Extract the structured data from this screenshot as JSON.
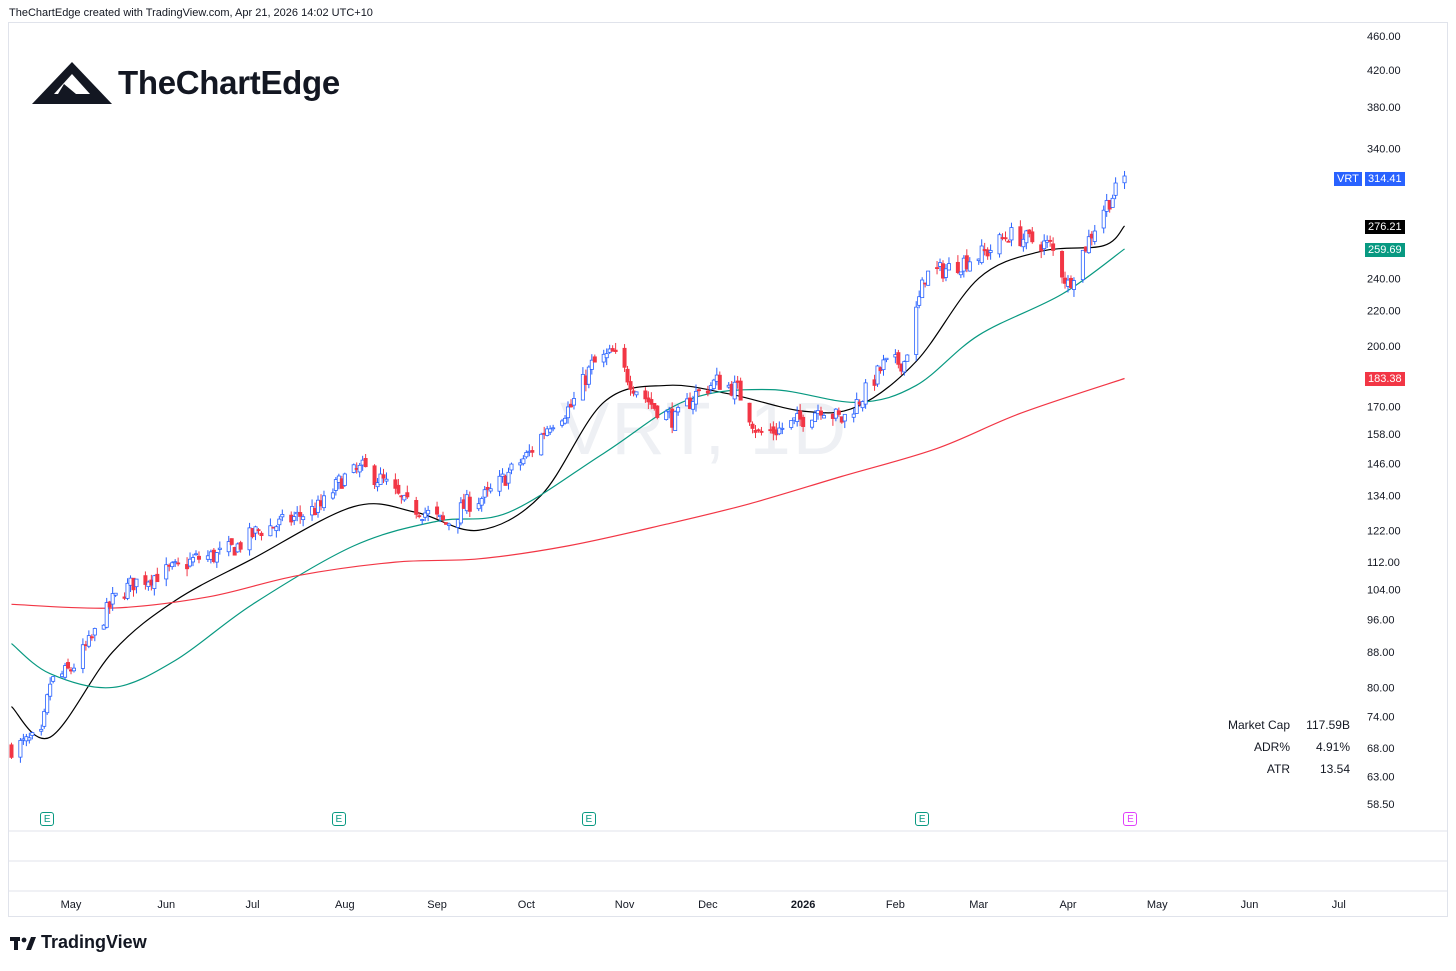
{
  "header": {
    "attribution": "TheChartEdge created with TradingView.com, Apr 21, 2026 14:02 UTC+10"
  },
  "logo": {
    "text": "TheChartEdge"
  },
  "watermark": {
    "text": "VRT, 1D"
  },
  "footer": {
    "brand": "TradingView"
  },
  "colors": {
    "up": "#2962ff",
    "down": "#f23645",
    "ma_fast": "#000000",
    "ma_mid": "#089981",
    "ma_slow": "#f23645",
    "grid": "#e0e3eb",
    "earnings": "#089981"
  },
  "price_labels": [
    {
      "id": "vrt",
      "ticker": "VRT",
      "value": "314.41",
      "color": "#2962ff"
    },
    {
      "id": "ma-fast",
      "value": "276.21",
      "color": "#000000"
    },
    {
      "id": "ma-mid",
      "value": "259.69",
      "color": "#089981"
    },
    {
      "id": "ma-slow",
      "value": "183.38",
      "color": "#f23645"
    }
  ],
  "stats": [
    {
      "label": "Market Cap",
      "value": "117.59B"
    },
    {
      "label": "ADR%",
      "value": "4.91%"
    },
    {
      "label": "ATR",
      "value": "13.54"
    }
  ],
  "earnings_markers": [
    {
      "label": "E",
      "date": "2025-04-23",
      "future": false
    },
    {
      "label": "E",
      "date": "2025-07-30",
      "future": false
    },
    {
      "label": "E",
      "date": "2025-10-22",
      "future": false
    },
    {
      "label": "E",
      "date": "2026-02-11",
      "future": false
    },
    {
      "label": "E",
      "date": "2026-04-22",
      "future": true
    }
  ],
  "chart_data": {
    "type": "candlestick",
    "symbol": "VRT",
    "interval": "1D",
    "scale": "log",
    "y_ticks": [
      460,
      420,
      380,
      340,
      240,
      220,
      200,
      170,
      158,
      146,
      134,
      122,
      112,
      104,
      96,
      88,
      80,
      74,
      68,
      63,
      58.5
    ],
    "y_tick_labels": [
      "460.00",
      "420.00",
      "380.00",
      "340.00",
      "240.00",
      "220.00",
      "200.00",
      "170.00",
      "158.00",
      "146.00",
      "134.00",
      "122.00",
      "112.00",
      "104.00",
      "96.00",
      "88.00",
      "80.00",
      "74.00",
      "68.00",
      "63.00",
      "58.50"
    ],
    "x_ticks": [
      {
        "label": "May",
        "date": "2025-05-01",
        "bold": false
      },
      {
        "label": "Jun",
        "date": "2025-06-02",
        "bold": false
      },
      {
        "label": "Jul",
        "date": "2025-07-01",
        "bold": false
      },
      {
        "label": "Aug",
        "date": "2025-08-01",
        "bold": false
      },
      {
        "label": "Sep",
        "date": "2025-09-01",
        "bold": false
      },
      {
        "label": "Oct",
        "date": "2025-10-01",
        "bold": false
      },
      {
        "label": "Nov",
        "date": "2025-11-03",
        "bold": false
      },
      {
        "label": "Dec",
        "date": "2025-12-01",
        "bold": false
      },
      {
        "label": "2026",
        "date": "2026-01-02",
        "bold": true
      },
      {
        "label": "Feb",
        "date": "2026-02-02",
        "bold": false
      },
      {
        "label": "Mar",
        "date": "2026-03-02",
        "bold": false
      },
      {
        "label": "Apr",
        "date": "2026-04-01",
        "bold": false
      },
      {
        "label": "May",
        "date": "2026-05-01",
        "bold": false
      },
      {
        "label": "Jun",
        "date": "2026-06-01",
        "bold": false
      },
      {
        "label": "Jul",
        "date": "2026-07-01",
        "bold": false
      }
    ],
    "close_path": [
      [
        "2025-04-11",
        68
      ],
      [
        "2025-04-21",
        70
      ],
      [
        "2025-04-24",
        81
      ],
      [
        "2025-05-01",
        84
      ],
      [
        "2025-05-08",
        91
      ],
      [
        "2025-05-15",
        101
      ],
      [
        "2025-05-22",
        106
      ],
      [
        "2025-05-29",
        108
      ],
      [
        "2025-06-05",
        110
      ],
      [
        "2025-06-12",
        113
      ],
      [
        "2025-06-19",
        114
      ],
      [
        "2025-06-26",
        117
      ],
      [
        "2025-07-03",
        122
      ],
      [
        "2025-07-10",
        124
      ],
      [
        "2025-07-17",
        127
      ],
      [
        "2025-07-24",
        130
      ],
      [
        "2025-07-31",
        140
      ],
      [
        "2025-08-07",
        144
      ],
      [
        "2025-08-14",
        139
      ],
      [
        "2025-08-21",
        131
      ],
      [
        "2025-08-28",
        128
      ],
      [
        "2025-09-04",
        124
      ],
      [
        "2025-09-11",
        131
      ],
      [
        "2025-09-18",
        134
      ],
      [
        "2025-09-25",
        142
      ],
      [
        "2025-10-02",
        150
      ],
      [
        "2025-10-09",
        163
      ],
      [
        "2025-10-16",
        170
      ],
      [
        "2025-10-23",
        190
      ],
      [
        "2025-10-30",
        196
      ],
      [
        "2025-11-06",
        180
      ],
      [
        "2025-11-13",
        170
      ],
      [
        "2025-11-20",
        164
      ],
      [
        "2025-11-27",
        176
      ],
      [
        "2025-12-04",
        182
      ],
      [
        "2025-12-11",
        178
      ],
      [
        "2025-12-18",
        158
      ],
      [
        "2025-12-25",
        160
      ],
      [
        "2026-01-01",
        164
      ],
      [
        "2026-01-08",
        170
      ],
      [
        "2026-01-15",
        164
      ],
      [
        "2026-01-22",
        175
      ],
      [
        "2026-01-29",
        190
      ],
      [
        "2026-02-05",
        192
      ],
      [
        "2026-02-12",
        242
      ],
      [
        "2026-02-19",
        246
      ],
      [
        "2026-02-26",
        252
      ],
      [
        "2026-03-05",
        258
      ],
      [
        "2026-03-12",
        270
      ],
      [
        "2026-03-19",
        266
      ],
      [
        "2026-03-26",
        262
      ],
      [
        "2026-04-01",
        236
      ],
      [
        "2026-04-07",
        262
      ],
      [
        "2026-04-13",
        290
      ],
      [
        "2026-04-17",
        303
      ],
      [
        "2026-04-20",
        314.41
      ]
    ],
    "series": [
      {
        "name": "MA fast",
        "last": 276.21,
        "points": [
          [
            "2025-04-11",
            76
          ],
          [
            "2025-04-24",
            70
          ],
          [
            "2025-05-15",
            88
          ],
          [
            "2025-06-05",
            101
          ],
          [
            "2025-07-01",
            113
          ],
          [
            "2025-08-04",
            130
          ],
          [
            "2025-08-25",
            128
          ],
          [
            "2025-09-15",
            122
          ],
          [
            "2025-10-06",
            134
          ],
          [
            "2025-10-27",
            172
          ],
          [
            "2025-11-17",
            180
          ],
          [
            "2025-12-08",
            176
          ],
          [
            "2026-01-02",
            168
          ],
          [
            "2026-01-20",
            170
          ],
          [
            "2026-02-09",
            192
          ],
          [
            "2026-03-02",
            240
          ],
          [
            "2026-03-23",
            258
          ],
          [
            "2026-04-13",
            262
          ],
          [
            "2026-04-20",
            276.21
          ]
        ]
      },
      {
        "name": "MA mid",
        "last": 259.69,
        "points": [
          [
            "2025-04-11",
            90
          ],
          [
            "2025-04-24",
            83
          ],
          [
            "2025-05-15",
            80
          ],
          [
            "2025-06-05",
            86
          ],
          [
            "2025-07-01",
            100
          ],
          [
            "2025-08-04",
            117
          ],
          [
            "2025-09-01",
            125
          ],
          [
            "2025-09-25",
            128
          ],
          [
            "2025-10-27",
            150
          ],
          [
            "2025-11-24",
            173
          ],
          [
            "2025-12-22",
            178
          ],
          [
            "2026-01-20",
            172
          ],
          [
            "2026-02-09",
            180
          ],
          [
            "2026-03-02",
            206
          ],
          [
            "2026-03-30",
            230
          ],
          [
            "2026-04-20",
            259.69
          ]
        ]
      },
      {
        "name": "MA slow",
        "last": 183.38,
        "points": [
          [
            "2025-04-11",
            100
          ],
          [
            "2025-05-15",
            99
          ],
          [
            "2025-06-16",
            102
          ],
          [
            "2025-07-16",
            108
          ],
          [
            "2025-08-18",
            112
          ],
          [
            "2025-09-15",
            113
          ],
          [
            "2025-10-15",
            117
          ],
          [
            "2025-11-17",
            124
          ],
          [
            "2025-12-15",
            131
          ],
          [
            "2026-01-15",
            141
          ],
          [
            "2026-02-16",
            152
          ],
          [
            "2026-03-16",
            167
          ],
          [
            "2026-04-20",
            183.38
          ]
        ]
      }
    ]
  }
}
